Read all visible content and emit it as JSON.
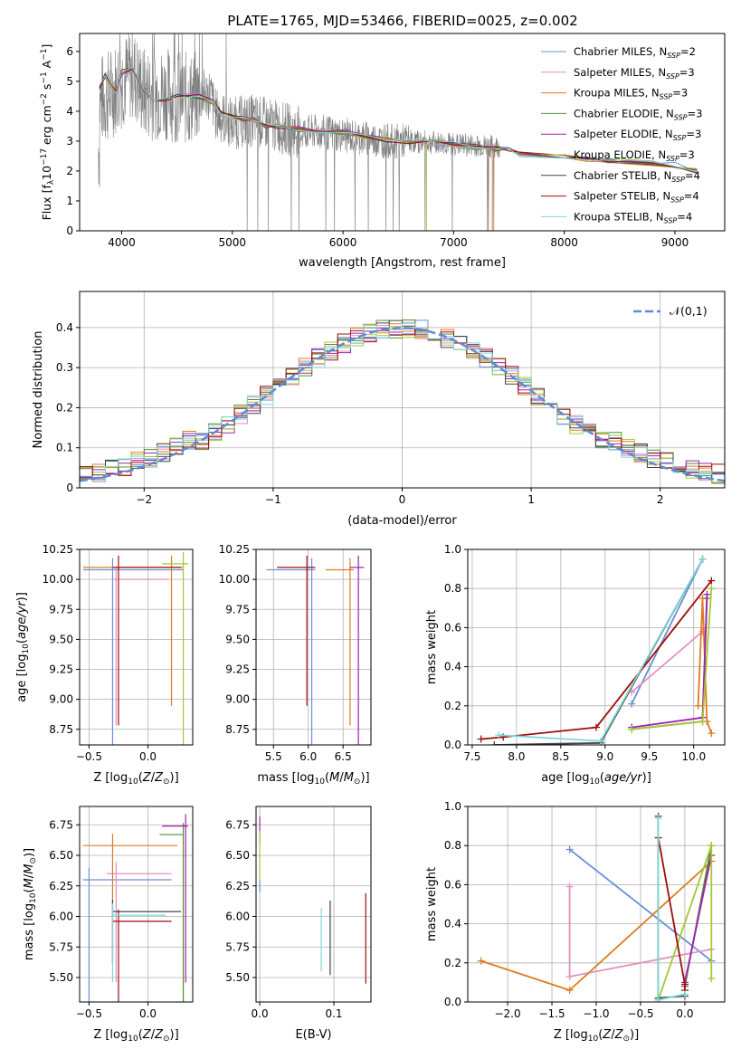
{
  "page": {
    "title": "PLATE=1765, MJD=53466, FIBERID=0025, z=0.002"
  },
  "colors": {
    "spectrum": "#808080",
    "gauss": "#5b8bd6",
    "series": [
      "#6a8fd8",
      "#e58fc0",
      "#df7b1f",
      "#4f8f2f",
      "#a020b0",
      "#a4c832",
      "#444444",
      "#a00c0c",
      "#7fd8d8"
    ],
    "grid": "#b0b0b0"
  },
  "chart_data": [
    {
      "id": "spectrum",
      "type": "line",
      "title": "PLATE=1765, MJD=53466, FIBERID=0025, z=0.002",
      "xlabel": "wavelength [Angstrom, rest frame]",
      "ylabel": "Flux [f_λ 10^-17 erg cm^-2 s^-1 A^-1]",
      "xlim": [
        3620,
        9450
      ],
      "ylim": [
        0,
        6.6
      ],
      "xticks": [
        4000,
        5000,
        6000,
        7000,
        8000,
        9000
      ],
      "yticks": [
        0,
        1,
        2,
        3,
        4,
        5,
        6
      ],
      "grid": false,
      "legend_position": "top-right",
      "data_curve": {
        "name": "data",
        "x": [
          3800,
          3900,
          4000,
          4100,
          4200,
          4400,
          4600,
          4800,
          4850,
          5000,
          5200,
          5400,
          5600,
          5800,
          6000,
          6200,
          6400,
          6600,
          6800,
          7000,
          7200,
          7400
        ],
        "y": [
          4.3,
          4.6,
          5.0,
          5.3,
          4.6,
          4.6,
          4.4,
          4.6,
          3.9,
          3.6,
          3.7,
          3.5,
          3.3,
          3.3,
          3.2,
          3.1,
          3.0,
          3.0,
          2.95,
          2.9,
          2.85,
          2.8
        ]
      },
      "model_curve": {
        "x": [
          3800,
          3850,
          3950,
          4000,
          4100,
          4200,
          4300,
          4400,
          4500,
          4700,
          4830,
          4900,
          5000,
          5100,
          5200,
          5300,
          5400,
          5600,
          5800,
          6000,
          6200,
          6400,
          6600,
          6800,
          7000,
          7200,
          7400,
          7500,
          7600,
          8000,
          8200,
          8400,
          8600,
          8800,
          9000,
          9200
        ],
        "y": [
          4.8,
          5.2,
          4.6,
          5.3,
          5.4,
          4.7,
          4.3,
          4.4,
          4.5,
          4.5,
          4.3,
          3.9,
          3.8,
          3.75,
          3.7,
          3.5,
          3.5,
          3.4,
          3.3,
          3.3,
          3.15,
          3.05,
          3.0,
          2.95,
          2.9,
          2.8,
          2.75,
          2.7,
          2.55,
          2.45,
          2.4,
          2.35,
          2.3,
          2.25,
          2.2,
          2.0
        ]
      },
      "series": [
        {
          "name": "Chabrier MILES",
          "nssp": "=2"
        },
        {
          "name": "Salpeter MILES",
          "nssp": "=3"
        },
        {
          "name": "Kroupa MILES",
          "nssp": "=3"
        },
        {
          "name": "Chabrier ELODIE",
          "nssp": "=3"
        },
        {
          "name": "Salpeter ELODIE",
          "nssp": "=3"
        },
        {
          "name": "Kroupa ELODIE",
          "nssp": "=3"
        },
        {
          "name": "Chabrier STELIB",
          "nssp": "=4"
        },
        {
          "name": "Salpeter STELIB",
          "nssp": "=4"
        },
        {
          "name": "Kroupa STELIB",
          "nssp": "=4"
        }
      ]
    },
    {
      "id": "residuals",
      "type": "line",
      "xlabel": "(data-model)/error",
      "ylabel": "Normed distribution",
      "xlim": [
        -2.5,
        2.5
      ],
      "ylim": [
        0,
        0.49
      ],
      "xticks": [
        -2,
        -1,
        0,
        1,
        2
      ],
      "yticks": [
        0.0,
        0.1,
        0.2,
        0.3,
        0.4
      ],
      "grid": true,
      "legend_position": "top-right",
      "legend": "𝒩(0,1)",
      "gaussian": {
        "mu": 0,
        "sigma": 1
      }
    },
    {
      "id": "z-age",
      "type": "scatter",
      "xlabel": "Z [log10(Z/Z⊙)]",
      "ylabel": "age  [log10(age/yr)]",
      "xlim": [
        -0.58,
        0.38
      ],
      "ylim": [
        8.62,
        10.25
      ],
      "xticks": [
        -0.5,
        0.0
      ],
      "yticks": [
        8.75,
        9.0,
        9.25,
        9.5,
        9.75,
        10.0,
        10.25
      ],
      "grid": true,
      "xticklabels": [
        "−0.5",
        "0.0"
      ],
      "yticklabels": [
        "8.75",
        "9.00",
        "9.25",
        "9.50",
        "9.75",
        "10.00",
        "10.25"
      ],
      "points": [
        {
          "s": 0,
          "x": -0.3,
          "y": 10.08,
          "x0": -0.55,
          "x1": 0.3
        },
        {
          "s": 1,
          "x": -0.27,
          "y": 10.0,
          "x0": -0.3,
          "x1": 0.18
        },
        {
          "s": 2,
          "x": 0.2,
          "y": 10.1,
          "x0": -0.55,
          "x1": 0.3
        },
        {
          "s": 5,
          "x": 0.3,
          "y": 10.13,
          "x0": 0.12,
          "x1": 0.34
        },
        {
          "s": 7,
          "x": -0.25,
          "y": 10.1,
          "x0": -0.3,
          "x1": 0.28
        }
      ]
    },
    {
      "id": "mass-age",
      "type": "scatter",
      "xlabel": "mass [log10(M/M⊙)]",
      "ylabel": "",
      "xlim": [
        5.25,
        6.9
      ],
      "ylim": [
        8.62,
        10.25
      ],
      "xticks": [
        5.5,
        6.0,
        6.5
      ],
      "yticks": [
        8.75,
        9.0,
        9.25,
        9.5,
        9.75,
        10.0,
        10.25
      ],
      "grid": true,
      "xticklabels": [
        "5.5",
        "6.0",
        "6.5"
      ],
      "yticklabels": [
        "8.75",
        "9.00",
        "9.25",
        "9.50",
        "9.75",
        "10.00",
        "10.25"
      ],
      "points": [
        {
          "s": 0,
          "x": 6.05,
          "y": 10.08,
          "x0": 5.4,
          "x1": 6.1
        },
        {
          "s": 2,
          "x": 6.6,
          "y": 10.08,
          "x0": 6.25,
          "x1": 6.65
        },
        {
          "s": 7,
          "x": 5.98,
          "y": 10.1,
          "x0": 5.55,
          "x1": 6.1
        },
        {
          "s": 4,
          "x": 6.72,
          "y": 10.1,
          "x0": 6.6,
          "x1": 6.8
        }
      ]
    },
    {
      "id": "age-weight",
      "type": "line",
      "xlabel": "age  [log10(age/yr)]",
      "ylabel": "mass weight",
      "xlim": [
        7.45,
        10.35
      ],
      "ylim": [
        0,
        1.0
      ],
      "xticks": [
        7.5,
        8.0,
        8.5,
        9.0,
        9.5,
        10.0
      ],
      "yticks": [
        0,
        0.2,
        0.4,
        0.6,
        0.8,
        1.0
      ],
      "grid": true,
      "xticklabels": [
        "7.5",
        "8.0",
        "8.5",
        "9.0",
        "9.5",
        "10.0"
      ],
      "yticklabels": [
        "0.0",
        "0.2",
        "0.4",
        "0.6",
        "0.8",
        "1.0"
      ],
      "lines": [
        {
          "s": 0,
          "x": [
            9.3,
            10.1
          ],
          "y": [
            0.21,
            0.95
          ]
        },
        {
          "s": 1,
          "x": [
            9.3,
            10.1
          ],
          "y": [
            0.27,
            0.58
          ]
        },
        {
          "s": 2,
          "x": [
            10.05,
            10.1,
            10.15,
            10.2
          ],
          "y": [
            0.2,
            0.75,
            0.12,
            0.06
          ]
        },
        {
          "s": 3,
          "x": [
            9.3,
            10.1,
            10.15
          ],
          "y": [
            0.08,
            0.12,
            0.75
          ]
        },
        {
          "s": 4,
          "x": [
            9.3,
            10.1,
            10.15
          ],
          "y": [
            0.09,
            0.14,
            0.77
          ]
        },
        {
          "s": 5,
          "x": [
            9.3,
            10.1,
            10.2
          ],
          "y": [
            0.08,
            0.12,
            0.8
          ]
        },
        {
          "s": 6,
          "x": [
            7.75,
            8.95,
            10.1
          ],
          "y": [
            0.0,
            0.01,
            0.95
          ]
        },
        {
          "s": 7,
          "x": [
            7.6,
            7.85,
            8.9,
            10.2
          ],
          "y": [
            0.03,
            0.04,
            0.09,
            0.84
          ]
        },
        {
          "s": 8,
          "x": [
            7.8,
            8.95,
            10.1
          ],
          "y": [
            0.05,
            0.02,
            0.95
          ]
        }
      ]
    },
    {
      "id": "z-mass",
      "type": "scatter",
      "xlabel": "Z [log10(Z/Z⊙)]",
      "ylabel": "mass [log10(M/M⊙)]",
      "xlim": [
        -0.58,
        0.38
      ],
      "ylim": [
        5.3,
        6.9
      ],
      "xticks": [
        -0.5,
        0.0
      ],
      "yticks": [
        5.5,
        5.75,
        6.0,
        6.25,
        6.5,
        6.75
      ],
      "grid": true,
      "xticklabels": [
        "−0.5",
        "0.0"
      ],
      "yticklabels": [
        "5.50",
        "5.75",
        "6.00",
        "6.25",
        "6.50",
        "6.75"
      ],
      "points": [
        {
          "s": 0,
          "x": -0.5,
          "y": 6.3,
          "x0": -0.55,
          "x1": 0.2
        },
        {
          "s": 1,
          "x": -0.27,
          "y": 6.35,
          "x0": -0.35,
          "x1": 0.2
        },
        {
          "s": 2,
          "x": -0.3,
          "y": 6.58,
          "x0": -0.55,
          "x1": 0.25
        },
        {
          "s": 3,
          "x": 0.3,
          "y": 6.67,
          "x0": 0.1,
          "x1": 0.3
        },
        {
          "s": 4,
          "x": 0.32,
          "y": 6.74,
          "x0": 0.12,
          "x1": 0.34
        },
        {
          "s": 6,
          "x": -0.3,
          "y": 6.04,
          "x0": -0.3,
          "x1": 0.28
        },
        {
          "s": 7,
          "x": -0.25,
          "y": 5.96,
          "x0": -0.3,
          "x1": 0.2
        },
        {
          "s": 8,
          "x": -0.3,
          "y": 6.01,
          "x0": -0.3,
          "x1": 0.15
        }
      ]
    },
    {
      "id": "ebv-mass",
      "type": "scatter",
      "xlabel": "E(B-V)",
      "ylabel": "",
      "xlim": [
        -0.005,
        0.15
      ],
      "ylim": [
        5.3,
        6.9
      ],
      "xticks": [
        0.0,
        0.1
      ],
      "yticks": [
        5.5,
        5.75,
        6.0,
        6.25,
        6.5,
        6.75
      ],
      "grid": true,
      "xticklabels": [
        "0.0",
        "0.1"
      ],
      "yticklabels": [
        "5.50",
        "5.75",
        "6.00",
        "6.25",
        "6.50",
        "6.75"
      ],
      "points": [
        {
          "s": 4,
          "x": 0.0,
          "y": 6.7,
          "y0": 6.6,
          "y1": 6.82
        },
        {
          "s": 5,
          "x": 0.0,
          "y": 6.5,
          "y0": 6.3,
          "y1": 6.7
        },
        {
          "s": 0,
          "x": 0.0,
          "y": 6.25,
          "y0": 6.2,
          "y1": 6.3
        },
        {
          "s": 8,
          "x": 0.083,
          "y": 5.8,
          "y0": 5.55,
          "y1": 6.07
        },
        {
          "s": 6,
          "x": 0.095,
          "y": 5.85,
          "y0": 5.52,
          "y1": 6.13
        },
        {
          "s": 7,
          "x": 0.143,
          "y": 5.8,
          "y0": 5.45,
          "y1": 6.19
        }
      ]
    },
    {
      "id": "z-weight",
      "type": "line",
      "xlabel": "Z [log10(Z/Z⊙)]",
      "ylabel": "mass weight",
      "xlim": [
        -2.45,
        0.45
      ],
      "ylim": [
        0,
        1.0
      ],
      "xticks": [
        -2.0,
        -1.5,
        -1.0,
        -0.5,
        0.0
      ],
      "yticks": [
        0,
        0.2,
        0.4,
        0.6,
        0.8,
        1.0
      ],
      "grid": true,
      "xticklabels": [
        "−2.0",
        "−1.5",
        "−1.0",
        "−0.5",
        "0.0"
      ],
      "yticklabels": [
        "0.0",
        "0.2",
        "0.4",
        "0.6",
        "0.8",
        "1.0"
      ],
      "lines": [
        {
          "s": 0,
          "x": [
            -1.3,
            0.3
          ],
          "y": [
            0.78,
            0.21
          ]
        },
        {
          "s": 1,
          "x": [
            -1.3,
            -1.3,
            0.3
          ],
          "y": [
            0.59,
            0.13,
            0.27
          ]
        },
        {
          "s": 2,
          "x": [
            -2.3,
            -1.3,
            0.3
          ],
          "y": [
            0.21,
            0.06,
            0.72
          ]
        },
        {
          "s": 3,
          "x": [
            0.0,
            0.3
          ],
          "y": [
            0.08,
            0.8
          ]
        },
        {
          "s": 4,
          "x": [
            0.0,
            0.3
          ],
          "y": [
            0.1,
            0.75
          ]
        },
        {
          "s": 5,
          "x": [
            -0.3,
            0.3,
            0.3
          ],
          "y": [
            0.01,
            0.8,
            0.12
          ]
        },
        {
          "s": 6,
          "x": [
            -0.3,
            -0.3,
            0.0
          ],
          "y": [
            0.95,
            0.02,
            0.03
          ]
        },
        {
          "s": 7,
          "x": [
            -0.3,
            0.0,
            0.0
          ],
          "y": [
            0.84,
            0.09,
            0.06
          ]
        },
        {
          "s": 8,
          "x": [
            -0.3,
            -0.3,
            0.0
          ],
          "y": [
            0.94,
            0.01,
            0.04
          ]
        }
      ]
    }
  ]
}
